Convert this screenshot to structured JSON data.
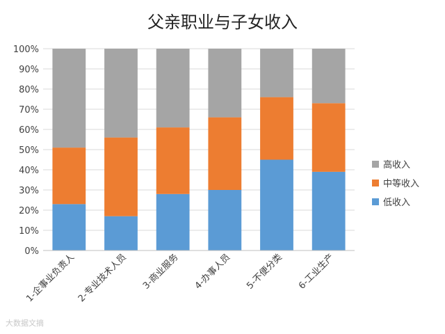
{
  "chart_data": {
    "type": "bar",
    "stacked": "percent",
    "title": "父亲职业与子女收入",
    "categories": [
      "1-企事业负责人",
      "2-专业技术人员",
      "3-商业服务",
      "4-办事人员",
      "5-不便分类",
      "6-工业生产"
    ],
    "series": [
      {
        "name": "低收入",
        "color": "#5b9bd5",
        "values": [
          23,
          17,
          28,
          30,
          45,
          39
        ]
      },
      {
        "name": "中等收入",
        "color": "#ed7d31",
        "values": [
          28,
          39,
          33,
          36,
          31,
          34
        ]
      },
      {
        "name": "高收入",
        "color": "#a5a5a5",
        "values": [
          49,
          44,
          39,
          34,
          24,
          27
        ]
      }
    ],
    "ylim": [
      0,
      100
    ],
    "yticks": [
      "0%",
      "10%",
      "20%",
      "30%",
      "40%",
      "50%",
      "60%",
      "70%",
      "80%",
      "90%",
      "100%"
    ],
    "grid": true,
    "legend_position": "right",
    "legend_order": [
      "高收入",
      "中等收入",
      "低收入"
    ]
  },
  "watermark": "大数据文摘"
}
